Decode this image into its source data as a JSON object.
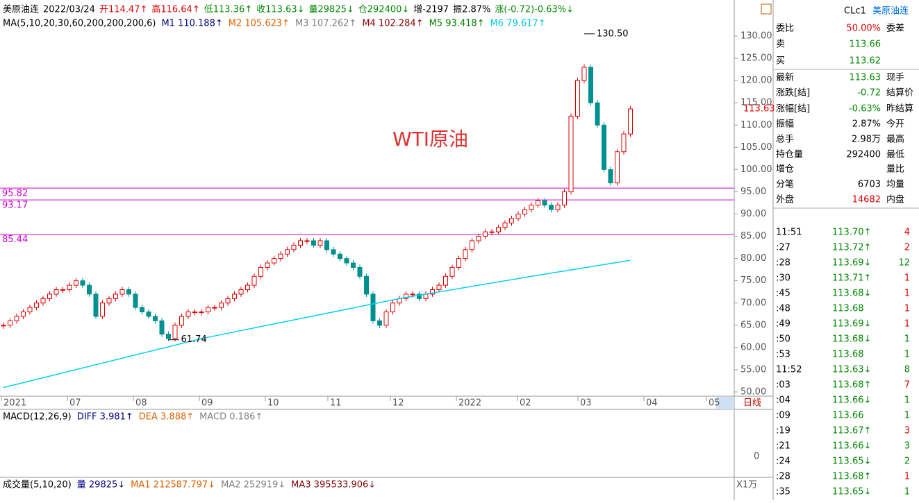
{
  "header": {
    "segments": [
      {
        "text": "美原油连",
        "color": "#000000"
      },
      {
        "text": "2022/03/24",
        "color": "#000000"
      },
      {
        "text": "开114.47↑",
        "color": "#e00000"
      },
      {
        "text": "高116.64↑",
        "color": "#e00000"
      },
      {
        "text": "低113.36↑",
        "color": "#008800"
      },
      {
        "text": "收113.63↓",
        "color": "#008800"
      },
      {
        "text": "量29825↓",
        "color": "#008800"
      },
      {
        "text": "仓292400↓",
        "color": "#008800"
      },
      {
        "text": "增-2197",
        "color": "#000000"
      },
      {
        "text": "振2.87%",
        "color": "#000000"
      },
      {
        "text": "涨(-0.72)-0.63%↓",
        "color": "#008800"
      }
    ],
    "ma": [
      {
        "text": "MA(5,10,20,30,60,200,200,200,6)",
        "color": "#000000"
      },
      {
        "text": "M1 110.188↑",
        "color": "#000080"
      },
      {
        "text": "M2 105.623↑",
        "color": "#e06000"
      },
      {
        "text": "M3 107.262↑",
        "color": "#808080"
      },
      {
        "text": "M4 102.284↑",
        "color": "#800000"
      },
      {
        "text": "M5 93.418↑",
        "color": "#008000"
      },
      {
        "text": "M6 79.617↑",
        "color": "#00c8e0"
      }
    ]
  },
  "chart": {
    "yticks": [
      {
        "value": 130,
        "label": "130.00"
      },
      {
        "value": 125,
        "label": "125.00"
      },
      {
        "value": 120,
        "label": "120.00"
      },
      {
        "value": 115,
        "label": "115.00"
      },
      {
        "value": 110,
        "label": "110.00"
      },
      {
        "value": 105,
        "label": "105.00"
      },
      {
        "value": 100,
        "label": "100.00"
      },
      {
        "value": 95,
        "label": "95.00"
      },
      {
        "value": 90,
        "label": "90.00"
      },
      {
        "value": 85,
        "label": "85.00"
      },
      {
        "value": 80,
        "label": "80.00"
      },
      {
        "value": 75,
        "label": "75.00"
      },
      {
        "value": 70,
        "label": "70.00"
      },
      {
        "value": 65,
        "label": "65.00"
      },
      {
        "value": 60,
        "label": "60.00"
      },
      {
        "value": 55,
        "label": "55.00"
      },
      {
        "value": 50,
        "label": "50.00"
      }
    ],
    "closes": [
      65,
      66,
      67,
      68,
      69,
      70,
      71,
      72,
      73,
      73,
      74,
      75,
      74,
      72,
      67,
      70,
      71,
      72,
      73,
      72,
      69,
      68,
      67,
      66,
      63,
      62,
      65,
      67,
      68,
      68,
      68,
      69,
      69,
      70,
      71,
      72,
      73,
      74,
      76,
      78,
      79,
      80,
      81,
      82,
      83,
      84,
      84,
      83,
      84,
      82,
      81,
      80,
      79,
      78,
      76,
      72,
      66,
      65,
      68,
      70,
      71,
      72,
      72,
      71,
      72,
      73,
      74,
      76,
      78,
      80,
      82,
      84,
      85,
      86,
      86,
      87,
      88,
      89,
      90,
      91,
      92,
      93,
      92,
      91,
      92,
      95,
      112,
      120,
      123,
      115,
      110,
      100,
      97,
      104,
      108,
      113.63
    ],
    "ma200": {
      "x": [
        0,
        30,
        60,
        80,
        95
      ],
      "values": [
        51,
        62,
        71,
        76,
        79.6
      ]
    },
    "levels": [
      {
        "value": 95.82,
        "label": "95.82"
      },
      {
        "value": 93.17,
        "label": "93.17"
      },
      {
        "value": 85.44,
        "label": "85.44"
      }
    ],
    "high": {
      "value": 130.5,
      "label": "130.50"
    },
    "low": {
      "value": 61.74,
      "label": "61.74"
    },
    "last": {
      "value": 113.63,
      "label": "113.63"
    },
    "annotation": "WTI原油",
    "dates": [
      "2021",
      "07",
      "08",
      "09",
      "10",
      "11",
      "12",
      "2022",
      "02",
      "03",
      "04",
      "05"
    ],
    "period": "日线"
  },
  "macd": {
    "segments": [
      {
        "text": "MACD(12,26,9)",
        "color": "#000000"
      },
      {
        "text": "DIFF 3.981↑",
        "color": "#000080"
      },
      {
        "text": "DEA 3.888↑",
        "color": "#e06000"
      },
      {
        "text": "MACD 0.186↑",
        "color": "#808080"
      }
    ],
    "zero": "0"
  },
  "volume": {
    "segments": [
      {
        "text": "成交量(5,10,20)",
        "color": "#000000"
      },
      {
        "text": "量 29825↓",
        "color": "#000080"
      },
      {
        "text": "MA1 212587.797↓",
        "color": "#e06000"
      },
      {
        "text": "MA2 252919↓",
        "color": "#808080"
      },
      {
        "text": "MA3 395533.906↓",
        "color": "#800000"
      }
    ],
    "unit": "X1万"
  },
  "panel": {
    "title": "CLc1",
    "name": "美原油连",
    "rows": [
      {
        "label": "委比",
        "value": "50.00%",
        "right": "委差",
        "color": "#e00000"
      },
      {
        "label": "卖",
        "value": "113.66",
        "color": "#008800"
      },
      {
        "label": "买",
        "value": "113.62",
        "color": "#008800"
      },
      {
        "label": "最新",
        "value": "113.63",
        "right": "现手",
        "color": "#008800"
      },
      {
        "label": "涨跌[结]",
        "value": "-0.72",
        "right": "结算价",
        "color": "#008800"
      },
      {
        "label": "涨幅[结]",
        "value": "-0.63%",
        "right": "昨结算",
        "color": "#008800"
      },
      {
        "label": "振幅",
        "value": "2.87%",
        "right": "今开",
        "color": "#000000"
      },
      {
        "label": "总手",
        "value": "2.98万",
        "right": "最高",
        "color": "#000000"
      },
      {
        "label": "持仓量",
        "value": "292400",
        "right": "最低",
        "color": "#000000"
      },
      {
        "label": "增仓",
        "right": "量比",
        "color": "#000000"
      },
      {
        "label": "分笔",
        "value": "6703",
        "right": "均量",
        "color": "#000000"
      },
      {
        "label": "外盘",
        "value": "14682",
        "right": "内盘",
        "color": "#e00000"
      }
    ],
    "ticks": [
      [
        "11:51",
        "113.70↑",
        "4",
        "up"
      ],
      [
        ":27",
        "113.72↑",
        "2",
        "up"
      ],
      [
        ":28",
        "113.69↓",
        "12",
        "down"
      ],
      [
        ":30",
        "113.71↑",
        "1",
        "up"
      ],
      [
        ":45",
        "113.68↓",
        "1",
        "up"
      ],
      [
        ":48",
        "113.68",
        "1",
        "up"
      ],
      [
        ":49",
        "113.69↓",
        "1",
        "up"
      ],
      [
        ":50",
        "113.68↓",
        "1",
        "down"
      ],
      [
        ":53",
        "113.68",
        "1",
        "down"
      ],
      [
        "11:52",
        "113.63↓",
        "8",
        "down"
      ],
      [
        ":03",
        "113.68↑",
        "7",
        "up"
      ],
      [
        ":04",
        "113.66↓",
        "1",
        "down"
      ],
      [
        ":09",
        "113.66",
        "1",
        "down"
      ],
      [
        ":19",
        "113.67↑",
        "3",
        "up"
      ],
      [
        ":21",
        "113.66↓",
        "3",
        "down"
      ],
      [
        ":24",
        "113.65↓",
        "2",
        "down"
      ],
      [
        ":28",
        "113.68↑",
        "1",
        "up"
      ],
      [
        ":35",
        "113.65↓",
        "1",
        "down"
      ]
    ]
  }
}
